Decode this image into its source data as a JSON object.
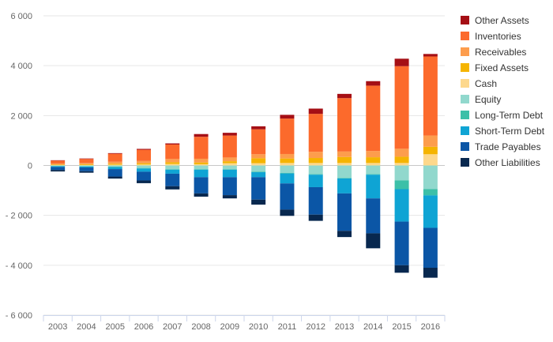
{
  "chart_data": {
    "type": "bar",
    "stacked": true,
    "title": "",
    "xlabel": "",
    "ylabel": "",
    "ylim": [
      -6000,
      6000
    ],
    "yticks": [
      -6000,
      -4000,
      -2000,
      0,
      2000,
      4000,
      6000
    ],
    "ytick_labels": [
      "- 6 000",
      "- 4 000",
      "- 2 000",
      "0",
      "2 000",
      "4 000",
      "6 000"
    ],
    "grid": true,
    "legend_position": "right",
    "categories": [
      "2003",
      "2004",
      "2005",
      "2006",
      "2007",
      "2008",
      "2009",
      "2010",
      "2011",
      "2012",
      "2013",
      "2014",
      "2015",
      "2016"
    ],
    "series": [
      {
        "name": "Other Assets",
        "color": "#a50f15",
        "side": "positive",
        "values": [
          15,
          20,
          25,
          35,
          45,
          110,
          110,
          120,
          150,
          210,
          170,
          180,
          300,
          100
        ]
      },
      {
        "name": "Inventories",
        "color": "#fc6a2c",
        "side": "positive",
        "values": [
          120,
          160,
          320,
          450,
          580,
          880,
          880,
          1000,
          1420,
          1520,
          2140,
          2620,
          3310,
          3170
        ]
      },
      {
        "name": "Receivables",
        "color": "#fd9d4d",
        "side": "positive",
        "values": [
          40,
          50,
          80,
          90,
          130,
          150,
          150,
          160,
          180,
          250,
          220,
          250,
          320,
          450
        ]
      },
      {
        "name": "Fixed Assets",
        "color": "#f5b400",
        "side": "positive",
        "values": [
          20,
          30,
          40,
          50,
          70,
          70,
          80,
          200,
          180,
          200,
          240,
          230,
          250,
          300
        ]
      },
      {
        "name": "Cash",
        "color": "#fdd88c",
        "side": "positive",
        "values": [
          15,
          20,
          30,
          40,
          60,
          50,
          90,
          90,
          100,
          100,
          100,
          100,
          100,
          450
        ]
      },
      {
        "name": "Equity",
        "color": "#91d8cd",
        "side": "negative",
        "values": [
          -20,
          -30,
          -50,
          -100,
          -150,
          -150,
          -150,
          -250,
          -300,
          -350,
          -500,
          -350,
          -600,
          -950
        ]
      },
      {
        "name": "Long-Term Debt",
        "color": "#3cc0a8",
        "side": "negative",
        "values": [
          -10,
          -10,
          -15,
          -20,
          -20,
          -20,
          -20,
          -20,
          -20,
          -20,
          -20,
          -20,
          -350,
          -250
        ]
      },
      {
        "name": "Short-Term Debt",
        "color": "#0fa4d4",
        "side": "negative",
        "values": [
          -30,
          -40,
          -80,
          -130,
          -160,
          -300,
          -300,
          -200,
          -400,
          -500,
          -600,
          -950,
          -1300,
          -1300
        ]
      },
      {
        "name": "Trade Payables",
        "color": "#0b56a6",
        "side": "negative",
        "values": [
          -120,
          -150,
          -300,
          -350,
          -500,
          -650,
          -720,
          -900,
          -1050,
          -1100,
          -1500,
          -1400,
          -1750,
          -1600
        ]
      },
      {
        "name": "Other Liabilities",
        "color": "#08284f",
        "side": "negative",
        "values": [
          -60,
          -60,
          -80,
          -110,
          -130,
          -130,
          -130,
          -200,
          -250,
          -250,
          -250,
          -600,
          -300,
          -400
        ]
      }
    ]
  }
}
